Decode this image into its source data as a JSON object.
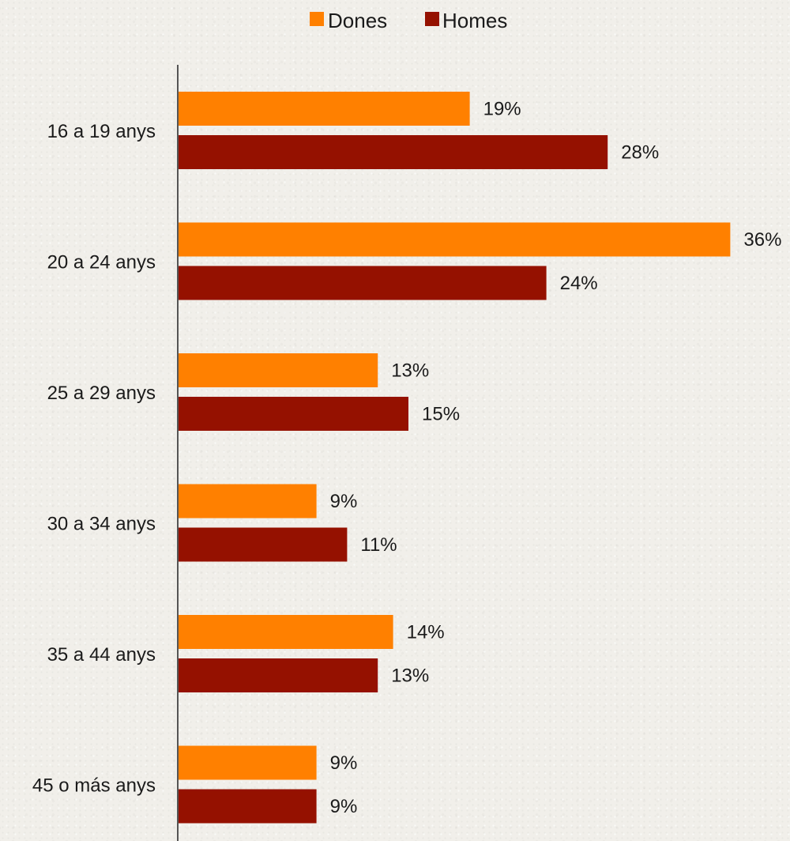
{
  "chart_data": {
    "type": "bar",
    "orientation": "horizontal",
    "categories": [
      "16 a 19 anys",
      "20 a 24 anys",
      "25 a 29 anys",
      "30 a 34 anys",
      "35 a 44 anys",
      "45 o más anys"
    ],
    "series": [
      {
        "name": "Dones",
        "color": "#ff8000",
        "values": [
          19,
          36,
          13,
          9,
          14,
          9
        ],
        "labels": [
          "19%",
          "36%",
          "13%",
          "9%",
          "14%",
          "9%"
        ]
      },
      {
        "name": "Homes",
        "color": "#951100",
        "values": [
          28,
          24,
          15,
          11,
          13,
          9
        ],
        "labels": [
          "28%",
          "24%",
          "15%",
          "11%",
          "13%",
          "9%"
        ]
      }
    ],
    "xlim": [
      0,
      36
    ],
    "grid": false,
    "legend": "top-center",
    "axis_color": "#555555"
  }
}
